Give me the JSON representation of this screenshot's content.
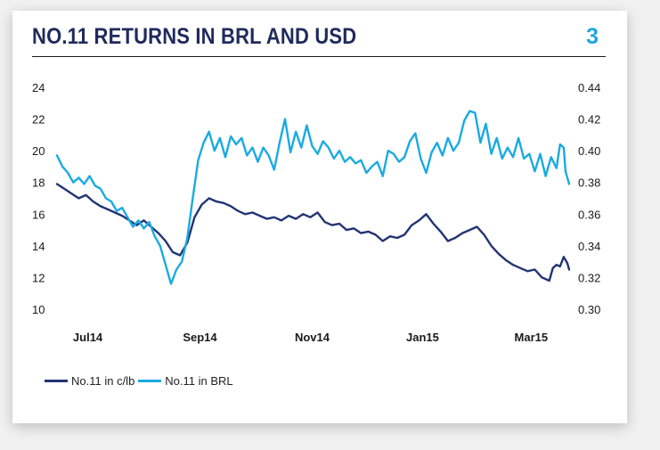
{
  "header": {
    "title": "NO.11 RETURNS IN BRL AND USD",
    "page_number": "3"
  },
  "colors": {
    "usd": "#223474",
    "brl": "#1aaae2",
    "title": "#1f2a5c",
    "accent": "#1aa7e0"
  },
  "chart_data": {
    "type": "line",
    "x_ticks": [
      "Jul14",
      "Sep14",
      "Nov14",
      "Jan15",
      "Mar15"
    ],
    "x_range": [
      "2014-07-01",
      "2015-04-10"
    ],
    "y_left": {
      "ticks": [
        "24",
        "22",
        "20",
        "18",
        "16",
        "14",
        "12",
        "10"
      ],
      "range": [
        10,
        24
      ]
    },
    "y_right": {
      "ticks": [
        "0.44",
        "0.42",
        "0.40",
        "0.38",
        "0.36",
        "0.34",
        "0.32",
        "0.30"
      ],
      "range": [
        0.3,
        0.44
      ]
    },
    "grid": false,
    "legend_position": "bottom-left",
    "series": [
      {
        "name": "No.11 in c/lb",
        "axis": "left",
        "points": [
          [
            "2014-07-01",
            17.9
          ],
          [
            "2014-07-05",
            17.6
          ],
          [
            "2014-07-09",
            17.3
          ],
          [
            "2014-07-13",
            17.0
          ],
          [
            "2014-07-17",
            17.2
          ],
          [
            "2014-07-21",
            16.8
          ],
          [
            "2014-07-25",
            16.5
          ],
          [
            "2014-07-29",
            16.3
          ],
          [
            "2014-08-02",
            16.1
          ],
          [
            "2014-08-06",
            15.9
          ],
          [
            "2014-08-10",
            15.6
          ],
          [
            "2014-08-14",
            15.3
          ],
          [
            "2014-08-18",
            15.6
          ],
          [
            "2014-08-22",
            15.2
          ],
          [
            "2014-08-26",
            14.8
          ],
          [
            "2014-08-30",
            14.3
          ],
          [
            "2014-09-03",
            13.6
          ],
          [
            "2014-09-07",
            13.4
          ],
          [
            "2014-09-11",
            14.2
          ],
          [
            "2014-09-15",
            15.8
          ],
          [
            "2014-09-19",
            16.6
          ],
          [
            "2014-09-23",
            17.0
          ],
          [
            "2014-09-27",
            16.8
          ],
          [
            "2014-10-01",
            16.7
          ],
          [
            "2014-10-05",
            16.5
          ],
          [
            "2014-10-09",
            16.2
          ],
          [
            "2014-10-13",
            16.0
          ],
          [
            "2014-10-17",
            16.1
          ],
          [
            "2014-10-21",
            15.9
          ],
          [
            "2014-10-25",
            15.7
          ],
          [
            "2014-10-29",
            15.8
          ],
          [
            "2014-11-02",
            15.6
          ],
          [
            "2014-11-06",
            15.9
          ],
          [
            "2014-11-10",
            15.7
          ],
          [
            "2014-11-14",
            16.0
          ],
          [
            "2014-11-18",
            15.8
          ],
          [
            "2014-11-22",
            16.1
          ],
          [
            "2014-11-26",
            15.5
          ],
          [
            "2014-11-30",
            15.3
          ],
          [
            "2014-12-04",
            15.4
          ],
          [
            "2014-12-08",
            15.0
          ],
          [
            "2014-12-12",
            15.1
          ],
          [
            "2014-12-16",
            14.8
          ],
          [
            "2014-12-20",
            14.9
          ],
          [
            "2014-12-24",
            14.7
          ],
          [
            "2014-12-28",
            14.3
          ],
          [
            "2015-01-01",
            14.6
          ],
          [
            "2015-01-05",
            14.5
          ],
          [
            "2015-01-09",
            14.7
          ],
          [
            "2015-01-13",
            15.3
          ],
          [
            "2015-01-17",
            15.6
          ],
          [
            "2015-01-21",
            16.0
          ],
          [
            "2015-01-25",
            15.4
          ],
          [
            "2015-01-29",
            14.9
          ],
          [
            "2015-02-02",
            14.3
          ],
          [
            "2015-02-06",
            14.5
          ],
          [
            "2015-02-10",
            14.8
          ],
          [
            "2015-02-14",
            15.0
          ],
          [
            "2015-02-18",
            15.2
          ],
          [
            "2015-02-22",
            14.7
          ],
          [
            "2015-02-26",
            14.0
          ],
          [
            "2015-03-02",
            13.5
          ],
          [
            "2015-03-06",
            13.1
          ],
          [
            "2015-03-10",
            12.8
          ],
          [
            "2015-03-14",
            12.6
          ],
          [
            "2015-03-18",
            12.4
          ],
          [
            "2015-03-22",
            12.5
          ],
          [
            "2015-03-26",
            12.0
          ],
          [
            "2015-03-30",
            11.8
          ],
          [
            "2015-04-01",
            12.6
          ],
          [
            "2015-04-03",
            12.8
          ],
          [
            "2015-04-05",
            12.7
          ],
          [
            "2015-04-07",
            13.3
          ],
          [
            "2015-04-09",
            12.9
          ],
          [
            "2015-04-10",
            12.5
          ]
        ]
      },
      {
        "name": "No.11 in BRL",
        "axis": "right",
        "points": [
          [
            "2014-07-01",
            0.397
          ],
          [
            "2014-07-04",
            0.39
          ],
          [
            "2014-07-07",
            0.386
          ],
          [
            "2014-07-10",
            0.38
          ],
          [
            "2014-07-13",
            0.383
          ],
          [
            "2014-07-16",
            0.379
          ],
          [
            "2014-07-19",
            0.384
          ],
          [
            "2014-07-22",
            0.378
          ],
          [
            "2014-07-25",
            0.376
          ],
          [
            "2014-07-28",
            0.37
          ],
          [
            "2014-07-31",
            0.368
          ],
          [
            "2014-08-03",
            0.362
          ],
          [
            "2014-08-06",
            0.364
          ],
          [
            "2014-08-09",
            0.358
          ],
          [
            "2014-08-12",
            0.352
          ],
          [
            "2014-08-15",
            0.356
          ],
          [
            "2014-08-18",
            0.351
          ],
          [
            "2014-08-21",
            0.355
          ],
          [
            "2014-08-24",
            0.346
          ],
          [
            "2014-08-27",
            0.34
          ],
          [
            "2014-08-30",
            0.328
          ],
          [
            "2014-09-02",
            0.316
          ],
          [
            "2014-09-05",
            0.325
          ],
          [
            "2014-09-08",
            0.33
          ],
          [
            "2014-09-11",
            0.345
          ],
          [
            "2014-09-14",
            0.37
          ],
          [
            "2014-09-17",
            0.394
          ],
          [
            "2014-09-20",
            0.405
          ],
          [
            "2014-09-23",
            0.412
          ],
          [
            "2014-09-26",
            0.4
          ],
          [
            "2014-09-29",
            0.408
          ],
          [
            "2014-10-02",
            0.396
          ],
          [
            "2014-10-05",
            0.409
          ],
          [
            "2014-10-08",
            0.404
          ],
          [
            "2014-10-11",
            0.408
          ],
          [
            "2014-10-14",
            0.397
          ],
          [
            "2014-10-17",
            0.402
          ],
          [
            "2014-10-20",
            0.393
          ],
          [
            "2014-10-23",
            0.402
          ],
          [
            "2014-10-26",
            0.397
          ],
          [
            "2014-10-29",
            0.388
          ],
          [
            "2014-11-01",
            0.405
          ],
          [
            "2014-11-04",
            0.42
          ],
          [
            "2014-11-07",
            0.399
          ],
          [
            "2014-11-10",
            0.412
          ],
          [
            "2014-11-13",
            0.402
          ],
          [
            "2014-11-16",
            0.416
          ],
          [
            "2014-11-19",
            0.403
          ],
          [
            "2014-11-22",
            0.398
          ],
          [
            "2014-11-25",
            0.406
          ],
          [
            "2014-11-28",
            0.402
          ],
          [
            "2014-12-01",
            0.395
          ],
          [
            "2014-12-04",
            0.4
          ],
          [
            "2014-12-07",
            0.393
          ],
          [
            "2014-12-10",
            0.396
          ],
          [
            "2014-12-13",
            0.392
          ],
          [
            "2014-12-16",
            0.394
          ],
          [
            "2014-12-19",
            0.386
          ],
          [
            "2014-12-22",
            0.39
          ],
          [
            "2014-12-25",
            0.393
          ],
          [
            "2014-12-28",
            0.384
          ],
          [
            "2014-12-31",
            0.4
          ],
          [
            "2015-01-03",
            0.398
          ],
          [
            "2015-01-06",
            0.393
          ],
          [
            "2015-01-09",
            0.396
          ],
          [
            "2015-01-12",
            0.406
          ],
          [
            "2015-01-15",
            0.411
          ],
          [
            "2015-01-18",
            0.395
          ],
          [
            "2015-01-21",
            0.386
          ],
          [
            "2015-01-24",
            0.399
          ],
          [
            "2015-01-27",
            0.405
          ],
          [
            "2015-01-30",
            0.397
          ],
          [
            "2015-02-02",
            0.408
          ],
          [
            "2015-02-05",
            0.4
          ],
          [
            "2015-02-08",
            0.405
          ],
          [
            "2015-02-11",
            0.419
          ],
          [
            "2015-02-14",
            0.425
          ],
          [
            "2015-02-17",
            0.424
          ],
          [
            "2015-02-20",
            0.405
          ],
          [
            "2015-02-23",
            0.417
          ],
          [
            "2015-02-26",
            0.398
          ],
          [
            "2015-03-01",
            0.408
          ],
          [
            "2015-03-04",
            0.395
          ],
          [
            "2015-03-07",
            0.402
          ],
          [
            "2015-03-10",
            0.396
          ],
          [
            "2015-03-13",
            0.408
          ],
          [
            "2015-03-16",
            0.395
          ],
          [
            "2015-03-19",
            0.398
          ],
          [
            "2015-03-22",
            0.387
          ],
          [
            "2015-03-25",
            0.398
          ],
          [
            "2015-03-28",
            0.384
          ],
          [
            "2015-03-31",
            0.396
          ],
          [
            "2015-04-03",
            0.389
          ],
          [
            "2015-04-05",
            0.404
          ],
          [
            "2015-04-07",
            0.402
          ],
          [
            "2015-04-08",
            0.387
          ],
          [
            "2015-04-10",
            0.379
          ]
        ]
      }
    ]
  }
}
